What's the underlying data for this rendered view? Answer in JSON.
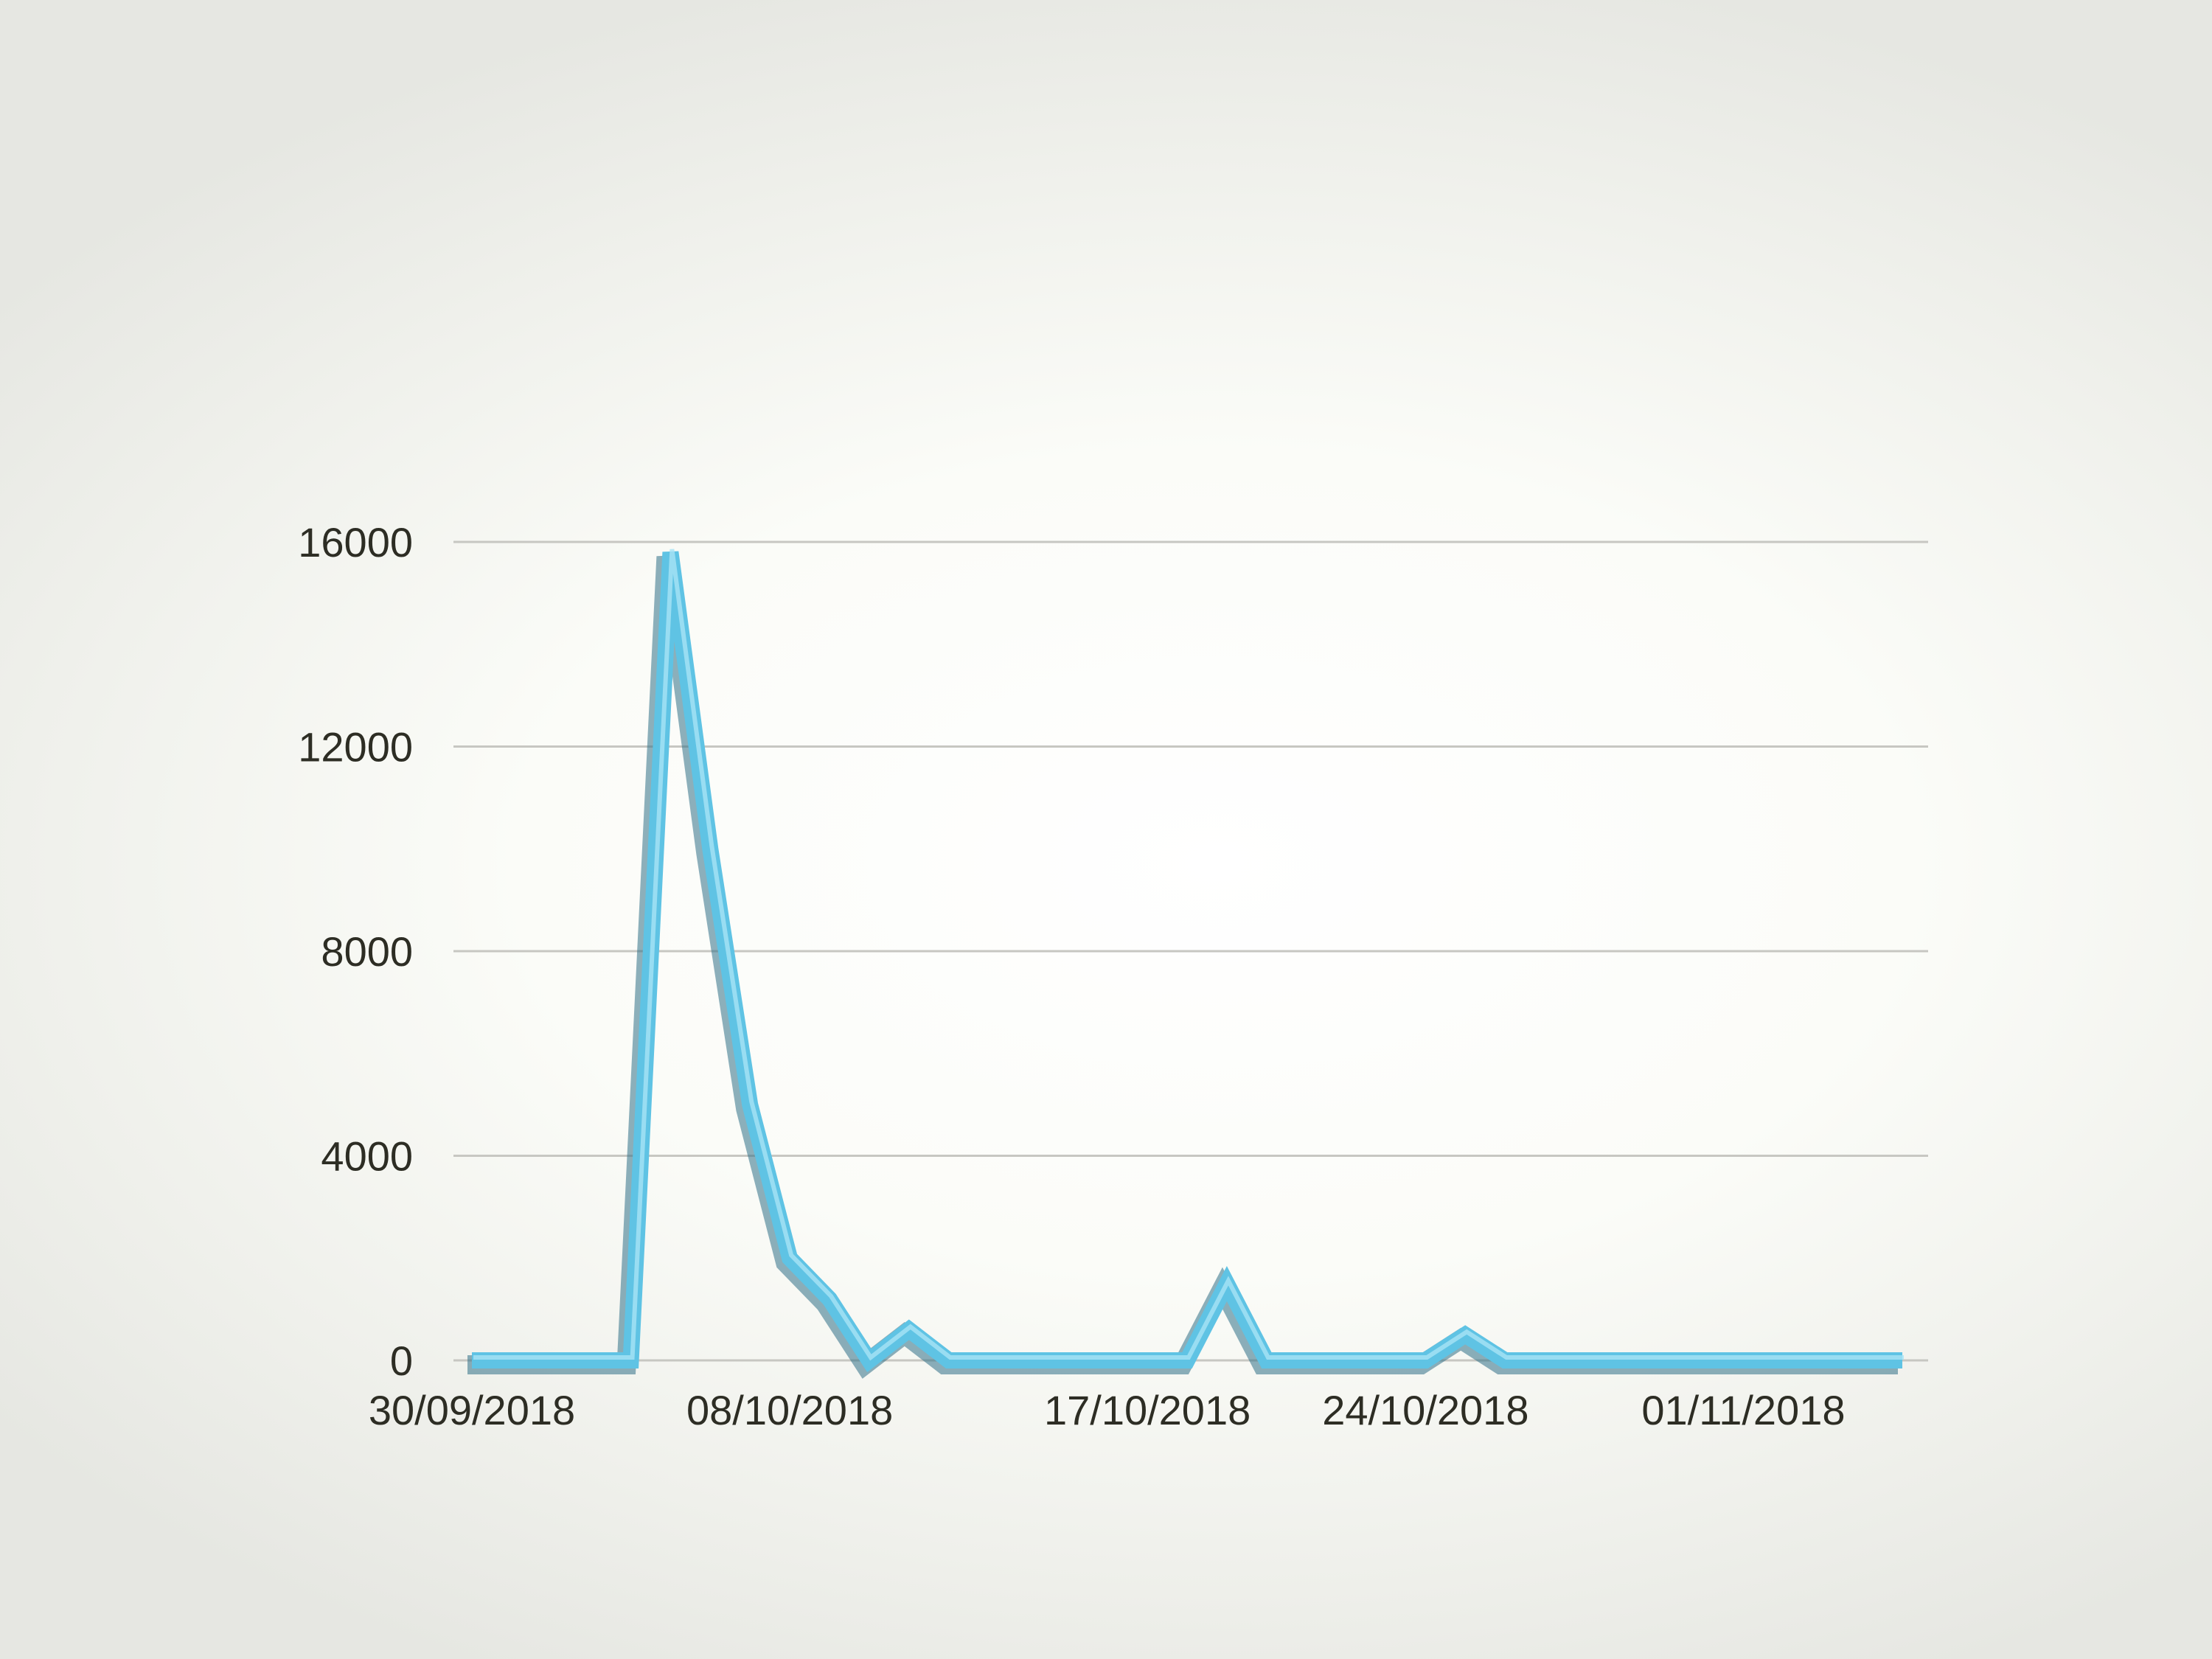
{
  "chart_data": {
    "type": "line",
    "title": "",
    "xlabel": "",
    "ylabel": "",
    "x_start": "2018-09-30",
    "x_end": "2018-11-05",
    "ylim": [
      0,
      16000
    ],
    "y_ticks": [
      "0",
      "4000",
      "8000",
      "12000",
      "16000"
    ],
    "x_ticks": [
      {
        "date": "2018-09-30",
        "label": "30/09/2018"
      },
      {
        "date": "2018-10-08",
        "label": "08/10/2018"
      },
      {
        "date": "2018-10-17",
        "label": "17/10/2018"
      },
      {
        "date": "2018-10-24",
        "label": "24/10/2018"
      },
      {
        "date": "2018-11-01",
        "label": "01/11/2018"
      }
    ],
    "grid": true,
    "line_color": "#5fc3e4",
    "series": [
      {
        "points": [
          {
            "x": "2018-09-30",
            "y": 0
          },
          {
            "x": "2018-10-01",
            "y": 0
          },
          {
            "x": "2018-10-02",
            "y": 0
          },
          {
            "x": "2018-10-03",
            "y": 0
          },
          {
            "x": "2018-10-04",
            "y": 0
          },
          {
            "x": "2018-10-05",
            "y": 15800
          },
          {
            "x": "2018-10-06",
            "y": 10000
          },
          {
            "x": "2018-10-07",
            "y": 5000
          },
          {
            "x": "2018-10-08",
            "y": 2000
          },
          {
            "x": "2018-10-09",
            "y": 1200
          },
          {
            "x": "2018-10-10",
            "y": 0
          },
          {
            "x": "2018-10-11",
            "y": 600
          },
          {
            "x": "2018-10-12",
            "y": 0
          },
          {
            "x": "2018-10-13",
            "y": 0
          },
          {
            "x": "2018-10-14",
            "y": 0
          },
          {
            "x": "2018-10-15",
            "y": 0
          },
          {
            "x": "2018-10-16",
            "y": 0
          },
          {
            "x": "2018-10-17",
            "y": 0
          },
          {
            "x": "2018-10-18",
            "y": 0
          },
          {
            "x": "2018-10-19",
            "y": 1500
          },
          {
            "x": "2018-10-20",
            "y": 0
          },
          {
            "x": "2018-10-21",
            "y": 0
          },
          {
            "x": "2018-10-22",
            "y": 0
          },
          {
            "x": "2018-10-23",
            "y": 0
          },
          {
            "x": "2018-10-24",
            "y": 0
          },
          {
            "x": "2018-10-25",
            "y": 500
          },
          {
            "x": "2018-10-26",
            "y": 0
          },
          {
            "x": "2018-10-27",
            "y": 0
          },
          {
            "x": "2018-10-28",
            "y": 0
          },
          {
            "x": "2018-10-29",
            "y": 0
          },
          {
            "x": "2018-10-30",
            "y": 0
          },
          {
            "x": "2018-10-31",
            "y": 0
          },
          {
            "x": "2018-11-01",
            "y": 0
          },
          {
            "x": "2018-11-02",
            "y": 0
          },
          {
            "x": "2018-11-03",
            "y": 0
          },
          {
            "x": "2018-11-04",
            "y": 0
          },
          {
            "x": "2018-11-05",
            "y": 0
          }
        ]
      }
    ]
  }
}
